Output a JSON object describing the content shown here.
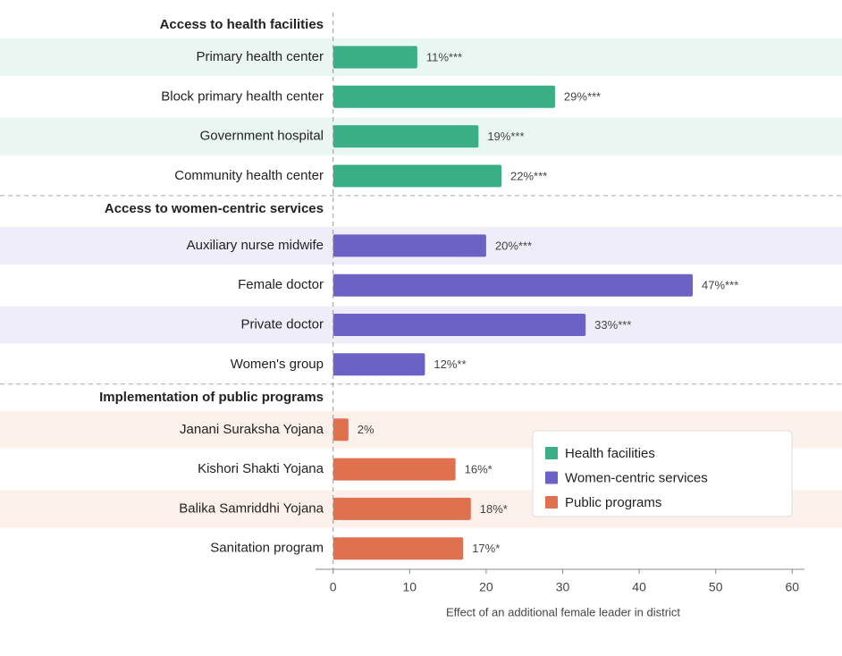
{
  "chart_data": {
    "type": "bar",
    "orientation": "horizontal",
    "xlabel": "Effect of an additional female leader in district",
    "xlim": [
      -2.3,
      61.6
    ],
    "xticks": [
      0,
      10,
      20,
      30,
      40,
      50,
      60
    ],
    "legend": "lower right",
    "groups": [
      {
        "title": "Access to health facilities",
        "name": "Health facilities",
        "color": "#3aaf85",
        "band": "#e9f6f1",
        "categories": [
          "Primary health center",
          "Block primary health center",
          "Government hospital",
          "Community health center"
        ],
        "values": [
          11,
          29,
          19,
          22
        ],
        "value_labels": [
          "11%***",
          "29%***",
          "19%***",
          "22%***"
        ]
      },
      {
        "title": "Access to women-centric services",
        "name": "Women-centric services",
        "color": "#6c62c6",
        "band": "#efedf8",
        "categories": [
          "Auxiliary nurse midwife",
          "Female doctor",
          "Private doctor",
          "Women's group"
        ],
        "values": [
          20,
          47,
          33,
          12
        ],
        "value_labels": [
          "20%***",
          "47%***",
          "33%***",
          "12%**"
        ]
      },
      {
        "title": "Implementation of public programs",
        "name": "Public programs",
        "color": "#e0714f",
        "band": "#fcf0ea",
        "categories": [
          "Janani Suraksha Yojana",
          "Kishori Shakti Yojana",
          "Balika Samriddhi Yojana",
          "Sanitation program"
        ],
        "values": [
          2,
          16,
          18,
          17
        ],
        "value_labels": [
          "2%",
          "16%*",
          "18%*",
          "17%*"
        ]
      }
    ]
  }
}
